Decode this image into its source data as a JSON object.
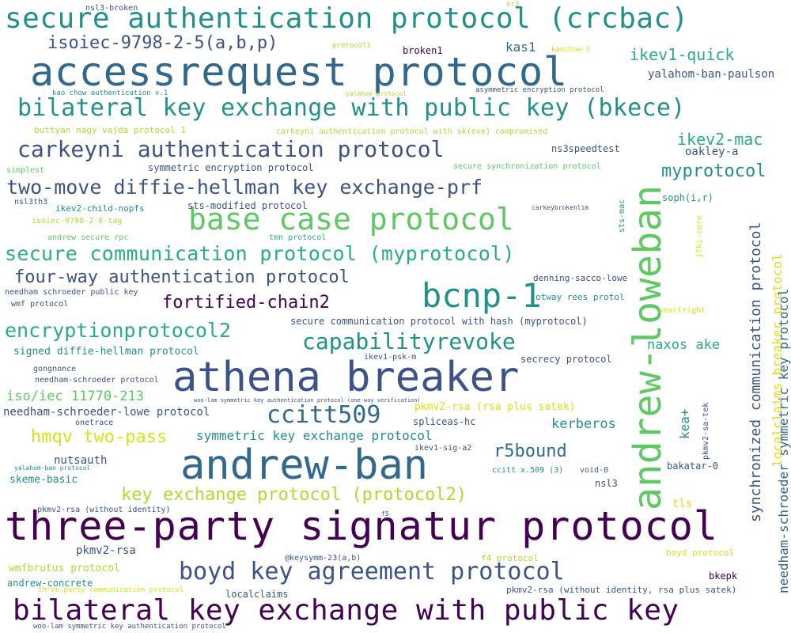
{
  "palette": {
    "background": "#ffffff",
    "dark_purple": "#440154",
    "indigo": "#3b528b",
    "blue": "#31688e",
    "teal": "#21918c",
    "green_teal": "#28ae80",
    "green": "#5ec962",
    "light_green": "#addc30",
    "yellow": "#d8e219"
  },
  "words": [
    {
      "text": "secure authentication protocol (crcbac)",
      "color": "#21918c"
    },
    {
      "text": "accessrequest protocol",
      "color": "#31688e"
    },
    {
      "text": "isoiec-9798-2-5(a,b,p)",
      "color": "#3b528b"
    },
    {
      "text": "bilateral key exchange with public key (bkece)",
      "color": "#21918c"
    },
    {
      "text": "carkeyni authentication protocol",
      "color": "#3b528b"
    },
    {
      "text": "two-move diffie-hellman key exchange-prf",
      "color": "#3b528b"
    },
    {
      "text": "base case protocol",
      "color": "#5ec962"
    },
    {
      "text": "secure communication protocol (myprotocol)",
      "color": "#28ae80"
    },
    {
      "text": "four-way authentication protocol",
      "color": "#3b528b"
    },
    {
      "text": "fortified-chain2",
      "color": "#440154"
    },
    {
      "text": "bcnp-1",
      "color": "#21918c"
    },
    {
      "text": "encryptionprotocol2",
      "color": "#28ae80"
    },
    {
      "text": "capabilityrevoke",
      "color": "#21918c"
    },
    {
      "text": "athena breaker",
      "color": "#3b528b"
    },
    {
      "text": "ccitt509",
      "color": "#31688e"
    },
    {
      "text": "hmqv two-pass",
      "color": "#d8e219"
    },
    {
      "text": "andrew-ban",
      "color": "#31688e"
    },
    {
      "text": "key exchange protocol (protocol2)",
      "color": "#addc30"
    },
    {
      "text": "three-party signatur protocol",
      "color": "#440154"
    },
    {
      "text": "boyd key agreement protocol",
      "color": "#3b528b"
    },
    {
      "text": "bilateral key exchange with public key",
      "color": "#440154"
    },
    {
      "text": "andrew-loweban",
      "color": "#5ec962"
    },
    {
      "text": "ikev1-quick",
      "color": "#28ae80"
    },
    {
      "text": "ikev2-mac",
      "color": "#28ae80"
    },
    {
      "text": "myprotocol",
      "color": "#21918c"
    },
    {
      "text": "r5bound",
      "color": "#31688e"
    },
    {
      "text": "kerberos",
      "color": "#21918c"
    },
    {
      "text": "naxos ake",
      "color": "#28ae80"
    },
    {
      "text": "iso/iec 11770-213",
      "color": "#5ec962"
    },
    {
      "text": "needham-schroeder-lowe protocol",
      "color": "#3b528b"
    },
    {
      "text": "symmetric key exchange protocol",
      "color": "#21918c"
    },
    {
      "text": "synchronized communication protocol",
      "color": "#3b528b"
    },
    {
      "text": "localclaims breaker protocol",
      "color": "#d8e219"
    },
    {
      "text": "needham-schroeder symmetric key protocol",
      "color": "#31688e"
    },
    {
      "text": "kas1",
      "color": "#31688e"
    },
    {
      "text": "yalahom-ban-paulson",
      "color": "#3b528b"
    },
    {
      "text": "oakley-a",
      "color": "#3b528b"
    },
    {
      "text": "ns3speedtest",
      "color": "#3b528b"
    },
    {
      "text": "kea+",
      "color": "#21918c"
    },
    {
      "text": "nutsauth",
      "color": "#3b528b"
    },
    {
      "text": "pkmv2-rsa",
      "color": "#3b528b"
    },
    {
      "text": "skeme-basic",
      "color": "#21918c"
    },
    {
      "text": "spliceas-hc",
      "color": "#3b528b"
    },
    {
      "text": "pkmv2-rsa (rsa plus satek)",
      "color": "#d8e219"
    },
    {
      "text": "wmfbrutus protocol",
      "color": "#addc30"
    },
    {
      "text": "andrew-concrete",
      "color": "#21918c"
    },
    {
      "text": "signed diffie-hellman protocol",
      "color": "#21918c"
    },
    {
      "text": "secure communication protocol with hash (myprotocol)",
      "color": "#3b528b"
    },
    {
      "text": "denning-sacco-lowe",
      "color": "#3b528b"
    },
    {
      "text": "otway rees protol",
      "color": "#21918c"
    },
    {
      "text": "secrecy protocol",
      "color": "#3b528b"
    },
    {
      "text": "sts-modified protocol",
      "color": "#3b528b"
    },
    {
      "text": "symmetric encryption protocol",
      "color": "#3b528b"
    },
    {
      "text": "carkeyni authentication protocol with sk(eve) compromised",
      "color": "#addc30"
    },
    {
      "text": "buttyan nagy vajda protocol 1",
      "color": "#addc30"
    },
    {
      "text": "kao chow authentication v.1",
      "color": "#21918c"
    },
    {
      "text": "yalahom protocol",
      "color": "#addc30"
    },
    {
      "text": "asymmetric encryption protocol",
      "color": "#3b528b"
    },
    {
      "text": "nsl3-broken",
      "color": "#3b528b"
    },
    {
      "text": "sr3",
      "color": "#addc30"
    },
    {
      "text": "protocol1",
      "color": "#addc30"
    },
    {
      "text": "broken1",
      "color": "#440154"
    },
    {
      "text": "kaochow-3",
      "color": "#d8e219"
    },
    {
      "text": "simplest",
      "color": "#5ec962"
    },
    {
      "text": "nsl3th3",
      "color": "#3b528b"
    },
    {
      "text": "ikev2-child-nopfs",
      "color": "#21918c"
    },
    {
      "text": "isoiec-9798-2-6-tag",
      "color": "#addc30"
    },
    {
      "text": "andrew secure rpc",
      "color": "#5ec962"
    },
    {
      "text": "tmn protocol",
      "color": "#28ae80"
    },
    {
      "text": "carkeybrokenlim",
      "color": "#3b528b"
    },
    {
      "text": "secure synchronization protocol",
      "color": "#5ec962"
    },
    {
      "text": "soph(i,r)",
      "color": "#21918c"
    },
    {
      "text": "sts-mac",
      "color": "#21918c"
    },
    {
      "text": "jfki-core",
      "color": "#d8e219"
    },
    {
      "text": "smartright",
      "color": "#d8e219"
    },
    {
      "text": "needham schroeder public key",
      "color": "#3b528b"
    },
    {
      "text": "wmf protocol",
      "color": "#3b528b"
    },
    {
      "text": "gongnonce",
      "color": "#3b528b"
    },
    {
      "text": "needham-schroeder protocol",
      "color": "#3b528b"
    },
    {
      "text": "ikev1-psk-m",
      "color": "#3b528b"
    },
    {
      "text": "woo-lam symmetric key authentication protocol (one-way verification)",
      "color": "#3b528b"
    },
    {
      "text": "onetrace",
      "color": "#3b528b"
    },
    {
      "text": "ikev1-sig-a2",
      "color": "#3b528b"
    },
    {
      "text": "yalahom-ban protocol",
      "color": "#21918c"
    },
    {
      "text": "ccitt x.509 (3)",
      "color": "#21918c"
    },
    {
      "text": "void-0",
      "color": "#3b528b"
    },
    {
      "text": "bakatar-0",
      "color": "#3b528b"
    },
    {
      "text": "pkmv2-sa-tek",
      "color": "#3b528b"
    },
    {
      "text": "nsl3",
      "color": "#3b528b"
    },
    {
      "text": "tls",
      "color": "#d8e219"
    },
    {
      "text": "pkmv2-rsa (without identity)",
      "color": "#3b528b"
    },
    {
      "text": "f5",
      "color": "#3b528b"
    },
    {
      "text": "@keysymm-23(a,b)",
      "color": "#3b528b"
    },
    {
      "text": "f4 protocol",
      "color": "#addc30"
    },
    {
      "text": "boyd protocol",
      "color": "#d8e219"
    },
    {
      "text": "bkepk",
      "color": "#440154"
    },
    {
      "text": "three-party communication protocol",
      "color": "#d8e219"
    },
    {
      "text": "localclaims",
      "color": "#3b528b"
    },
    {
      "text": "pkmv2-rsa (without identity, rsa plus satek)",
      "color": "#3b528b"
    },
    {
      "text": "woo-lam symmetric key authentication protocol",
      "color": "#3b528b"
    }
  ]
}
